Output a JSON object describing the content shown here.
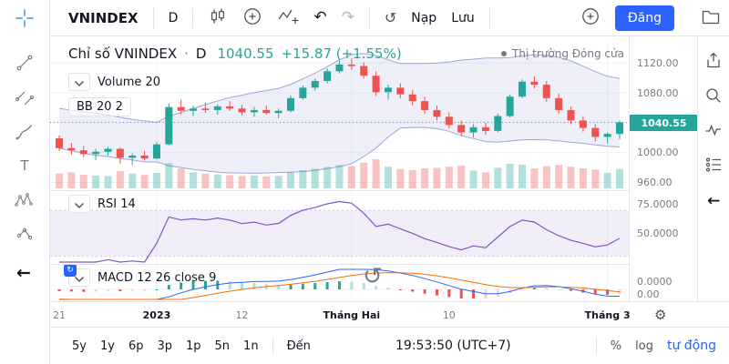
{
  "colors": {
    "accent": "#2962ff",
    "up": "#26a69a",
    "down": "#ef5350",
    "text": "#131722",
    "muted": "#787b86",
    "border": "#e0e3eb",
    "grid": "#f0f3fa",
    "bb_line": "rgba(90,100,190,0.55)",
    "bb_fill": "rgba(90,100,190,0.10)",
    "rsi_line": "#7e57c2",
    "rsi_fill": "rgba(126,87,194,0.10)",
    "macd_line": "#2962ff",
    "signal_line": "#ff6d00",
    "vol_up": "rgba(38,166,154,0.35)",
    "vol_down": "rgba(239,83,80,0.35)"
  },
  "topbar": {
    "symbol": "VNINDEX",
    "interval": "D",
    "load": "Nạp",
    "save": "Lưu",
    "publish": "Đăng"
  },
  "icons": {
    "undo": "↶",
    "redo": "↷",
    "refresh": "↺",
    "spinner": "↺",
    "back": "←",
    "collapse": "←",
    "gear": "⚙",
    "badge_sync": "↻"
  },
  "header": {
    "title": "Chỉ số VNINDEX",
    "dot": "·",
    "interval": "D",
    "price": "1040.55",
    "change": "+15.87 (+1.55%)",
    "market_status": "Thị trường Đóng cửa"
  },
  "legends": {
    "volume": "Volume 20",
    "bb": "BB 20 2",
    "rsi": "RSI 14",
    "macd": "MACD 12 26 close 9"
  },
  "price_axis": {
    "labels": [
      "1120.00",
      "1080.00",
      "1000.00",
      "960.00"
    ],
    "current": "1040.55",
    "rsi": [
      "75.0000",
      "50.0000"
    ],
    "macd": [
      "0.0000",
      "0.00"
    ]
  },
  "bottom_bar": {
    "ranges": [
      "5y",
      "1y",
      "6p",
      "3p",
      "1p",
      "5n",
      "1n"
    ],
    "goto": "Đến",
    "clock": "19:53:50 (UTC+7)",
    "percent": "%",
    "log": "log",
    "auto": "tự động"
  },
  "chart_data": {
    "type": "candlestick",
    "symbol": "VNINDEX",
    "interval": "D",
    "last_price": 1040.55,
    "change": 15.87,
    "change_pct": 1.55,
    "price_axis_range": [
      952,
      1146
    ],
    "price_gridlines": [
      960,
      1000,
      1040,
      1080,
      1120
    ],
    "rsi_range": [
      25,
      85
    ],
    "indicators": [
      "Volume 20",
      "BB 20 2",
      "RSI 14",
      "MACD 12 26 close 9"
    ],
    "time_labels": [
      {
        "text": "21",
        "index": 0,
        "major": false
      },
      {
        "text": "2023",
        "index": 8,
        "major": true
      },
      {
        "text": "12",
        "index": 15,
        "major": false
      },
      {
        "text": "Tháng Hai",
        "index": 24,
        "major": true
      },
      {
        "text": "10",
        "index": 32,
        "major": false
      },
      {
        "text": "Tháng 3",
        "index": 45,
        "major": true
      }
    ],
    "indicator_seed_closes": [
      1062,
      1058,
      1054,
      1049,
      1045,
      1050,
      1043,
      1038,
      1032,
      1027,
      1033,
      1029,
      1024,
      1030,
      1026,
      1021,
      1027,
      1023,
      1019,
      1015
    ],
    "candles": [
      [
        1019,
        1023,
        1002,
        1006
      ],
      [
        1006,
        1013,
        997,
        1003
      ],
      [
        1003,
        1009,
        994,
        998
      ],
      [
        998,
        1005,
        990,
        1001
      ],
      [
        1001,
        1008,
        996,
        1005
      ],
      [
        1005,
        1007,
        985,
        993
      ],
      [
        993,
        999,
        983,
        996
      ],
      [
        996,
        1002,
        989,
        992
      ],
      [
        992,
        1014,
        991,
        1011
      ],
      [
        1011,
        1066,
        1009,
        1061
      ],
      [
        1061,
        1071,
        1051,
        1056
      ],
      [
        1056,
        1063,
        1049,
        1059
      ],
      [
        1059,
        1067,
        1053,
        1057
      ],
      [
        1057,
        1065,
        1051,
        1062
      ],
      [
        1062,
        1069,
        1056,
        1059
      ],
      [
        1059,
        1064,
        1050,
        1054
      ],
      [
        1054,
        1061,
        1048,
        1057
      ],
      [
        1057,
        1063,
        1051,
        1053
      ],
      [
        1053,
        1059,
        1046,
        1056
      ],
      [
        1056,
        1076,
        1054,
        1073
      ],
      [
        1073,
        1090,
        1071,
        1087
      ],
      [
        1087,
        1099,
        1083,
        1096
      ],
      [
        1096,
        1113,
        1093,
        1109
      ],
      [
        1109,
        1123,
        1106,
        1118
      ],
      [
        1118,
        1126,
        1111,
        1116
      ],
      [
        1116,
        1121,
        1099,
        1103
      ],
      [
        1103,
        1109,
        1076,
        1081
      ],
      [
        1081,
        1091,
        1071,
        1087
      ],
      [
        1087,
        1093,
        1073,
        1078
      ],
      [
        1078,
        1084,
        1063,
        1069
      ],
      [
        1069,
        1075,
        1052,
        1057
      ],
      [
        1057,
        1063,
        1043,
        1048
      ],
      [
        1048,
        1054,
        1032,
        1037
      ],
      [
        1037,
        1043,
        1022,
        1027
      ],
      [
        1027,
        1038,
        1020,
        1034
      ],
      [
        1034,
        1040,
        1024,
        1029
      ],
      [
        1029,
        1052,
        1027,
        1049
      ],
      [
        1049,
        1078,
        1047,
        1075
      ],
      [
        1075,
        1098,
        1073,
        1095
      ],
      [
        1095,
        1102,
        1086,
        1091
      ],
      [
        1091,
        1096,
        1068,
        1073
      ],
      [
        1073,
        1079,
        1052,
        1057
      ],
      [
        1057,
        1062,
        1038,
        1043
      ],
      [
        1043,
        1049,
        1028,
        1033
      ],
      [
        1033,
        1038,
        1015,
        1021
      ],
      [
        1021,
        1027,
        1012,
        1025
      ],
      [
        1025,
        1043,
        1018,
        1040.55
      ]
    ],
    "volumes": [
      520,
      560,
      480,
      450,
      430,
      610,
      520,
      470,
      540,
      880,
      700,
      560,
      520,
      490,
      460,
      430,
      450,
      420,
      440,
      580,
      640,
      690,
      750,
      820,
      780,
      900,
      1020,
      760,
      680,
      640,
      700,
      720,
      760,
      800,
      620,
      560,
      720,
      860,
      830,
      700,
      780,
      820,
      760,
      700,
      660,
      540,
      680
    ]
  }
}
